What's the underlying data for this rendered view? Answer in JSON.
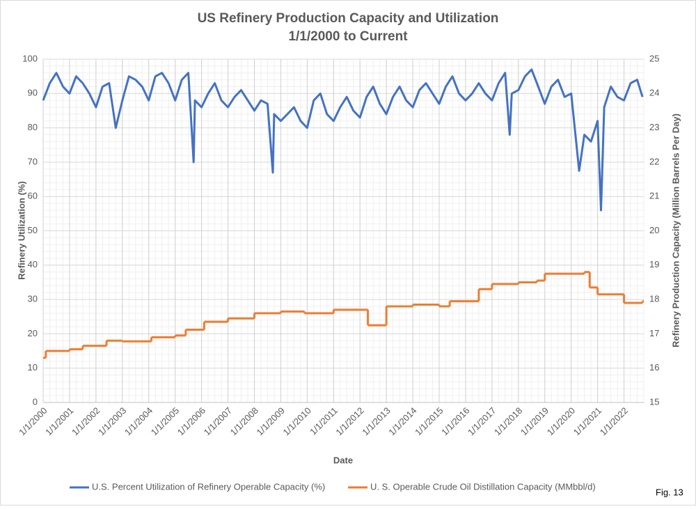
{
  "chart_data": {
    "type": "line",
    "title": "US Refinery Production Capacity and Utilization",
    "subtitle": "1/1/2000 to Current",
    "xlabel": "Date",
    "ylabel": "Refinery Utilization (%)",
    "y2label": "Refinery Production Capacity (Million Barrels Per Day)",
    "annotation": "Fig. 13",
    "xlim": [
      2000,
      2022.75
    ],
    "xticks": [
      {
        "value": 2000,
        "label": "1/1/2000"
      },
      {
        "value": 2001,
        "label": "1/1/2001"
      },
      {
        "value": 2002,
        "label": "1/1/2002"
      },
      {
        "value": 2003,
        "label": "1/1/2003"
      },
      {
        "value": 2004,
        "label": "1/1/2004"
      },
      {
        "value": 2005,
        "label": "1/1/2005"
      },
      {
        "value": 2006,
        "label": "1/1/2006"
      },
      {
        "value": 2007,
        "label": "1/1/2007"
      },
      {
        "value": 2008,
        "label": "1/1/2008"
      },
      {
        "value": 2009,
        "label": "1/1/2009"
      },
      {
        "value": 2010,
        "label": "1/1/2010"
      },
      {
        "value": 2011,
        "label": "1/1/2011"
      },
      {
        "value": 2012,
        "label": "1/1/2012"
      },
      {
        "value": 2013,
        "label": "1/1/2013"
      },
      {
        "value": 2014,
        "label": "1/1/2014"
      },
      {
        "value": 2015,
        "label": "1/1/2015"
      },
      {
        "value": 2016,
        "label": "1/1/2016"
      },
      {
        "value": 2017,
        "label": "1/1/2017"
      },
      {
        "value": 2018,
        "label": "1/1/2018"
      },
      {
        "value": 2019,
        "label": "1/1/2019"
      },
      {
        "value": 2020,
        "label": "1/1/2020"
      },
      {
        "value": 2021,
        "label": "1/1/2021"
      },
      {
        "value": 2022,
        "label": "1/1/2022"
      }
    ],
    "ylim": [
      0,
      100
    ],
    "yticks": [
      0,
      10,
      20,
      30,
      40,
      50,
      60,
      70,
      80,
      90,
      100
    ],
    "y2lim": [
      15,
      25
    ],
    "y2ticks": [
      15,
      16,
      17,
      18,
      19,
      20,
      21,
      22,
      23,
      24,
      25
    ],
    "grid": true,
    "legend": "bottom",
    "series": [
      {
        "name": "U.S. Percent Utilization of Refinery Operable Capacity (%)",
        "color": "#4472c4",
        "x": [
          2000,
          2000.25,
          2000.5,
          2000.75,
          2001,
          2001.25,
          2001.5,
          2001.75,
          2002,
          2002.25,
          2002.5,
          2002.75,
          2003,
          2003.25,
          2003.5,
          2003.75,
          2004,
          2004.25,
          2004.5,
          2004.75,
          2005,
          2005.25,
          2005.5,
          2005.7,
          2005.75,
          2006,
          2006.25,
          2006.5,
          2006.75,
          2007,
          2007.25,
          2007.5,
          2007.75,
          2008,
          2008.25,
          2008.5,
          2008.7,
          2008.75,
          2009,
          2009.25,
          2009.5,
          2009.75,
          2010,
          2010.25,
          2010.5,
          2010.75,
          2011,
          2011.25,
          2011.5,
          2011.75,
          2012,
          2012.25,
          2012.5,
          2012.75,
          2013,
          2013.25,
          2013.5,
          2013.75,
          2014,
          2014.25,
          2014.5,
          2014.75,
          2015,
          2015.25,
          2015.5,
          2015.75,
          2016,
          2016.25,
          2016.5,
          2016.75,
          2017,
          2017.25,
          2017.5,
          2017.67,
          2017.75,
          2018,
          2018.25,
          2018.5,
          2018.75,
          2019,
          2019.25,
          2019.5,
          2019.75,
          2020,
          2020.3,
          2020.5,
          2020.75,
          2021,
          2021.13,
          2021.25,
          2021.5,
          2021.75,
          2022,
          2022.25,
          2022.5,
          2022.7
        ],
        "values": [
          88,
          93,
          96,
          92,
          90,
          95,
          93,
          90,
          86,
          92,
          93,
          80,
          88,
          95,
          94,
          92,
          88,
          95,
          96,
          93,
          88,
          94,
          96,
          70,
          88,
          86,
          90,
          93,
          88,
          86,
          89,
          91,
          88,
          85,
          88,
          87,
          67,
          84,
          82,
          84,
          86,
          82,
          80,
          88,
          90,
          84,
          82,
          86,
          89,
          85,
          83,
          89,
          92,
          87,
          84,
          89,
          92,
          88,
          86,
          91,
          93,
          90,
          87,
          92,
          95,
          90,
          88,
          90,
          93,
          90,
          88,
          93,
          96,
          78,
          90,
          91,
          95,
          97,
          92,
          87,
          92,
          94,
          89,
          90,
          67.5,
          78,
          76,
          82,
          56,
          86,
          92,
          89,
          88,
          93,
          94,
          89
        ]
      },
      {
        "name": "U. S. Operable Crude Oil Distillation Capacity (MMbbl/d)",
        "color": "#ed7d31",
        "axis": "y2",
        "x": [
          2000,
          2000.1,
          2001,
          2001.5,
          2002.4,
          2003,
          2004.1,
          2005,
          2005.4,
          2006.1,
          2007,
          2008,
          2009,
          2009.9,
          2011,
          2012.3,
          2013,
          2014,
          2015,
          2015.4,
          2016.5,
          2017,
          2018,
          2018.7,
          2019,
          2020.5,
          2020.7,
          2021,
          2022,
          2022.7
        ],
        "values": [
          16.3,
          16.5,
          16.55,
          16.65,
          16.8,
          16.78,
          16.9,
          16.95,
          17.12,
          17.35,
          17.45,
          17.6,
          17.65,
          17.6,
          17.7,
          17.25,
          17.8,
          17.85,
          17.8,
          17.95,
          18.3,
          18.45,
          18.5,
          18.55,
          18.75,
          18.8,
          18.35,
          18.15,
          17.9,
          17.95
        ]
      }
    ]
  }
}
